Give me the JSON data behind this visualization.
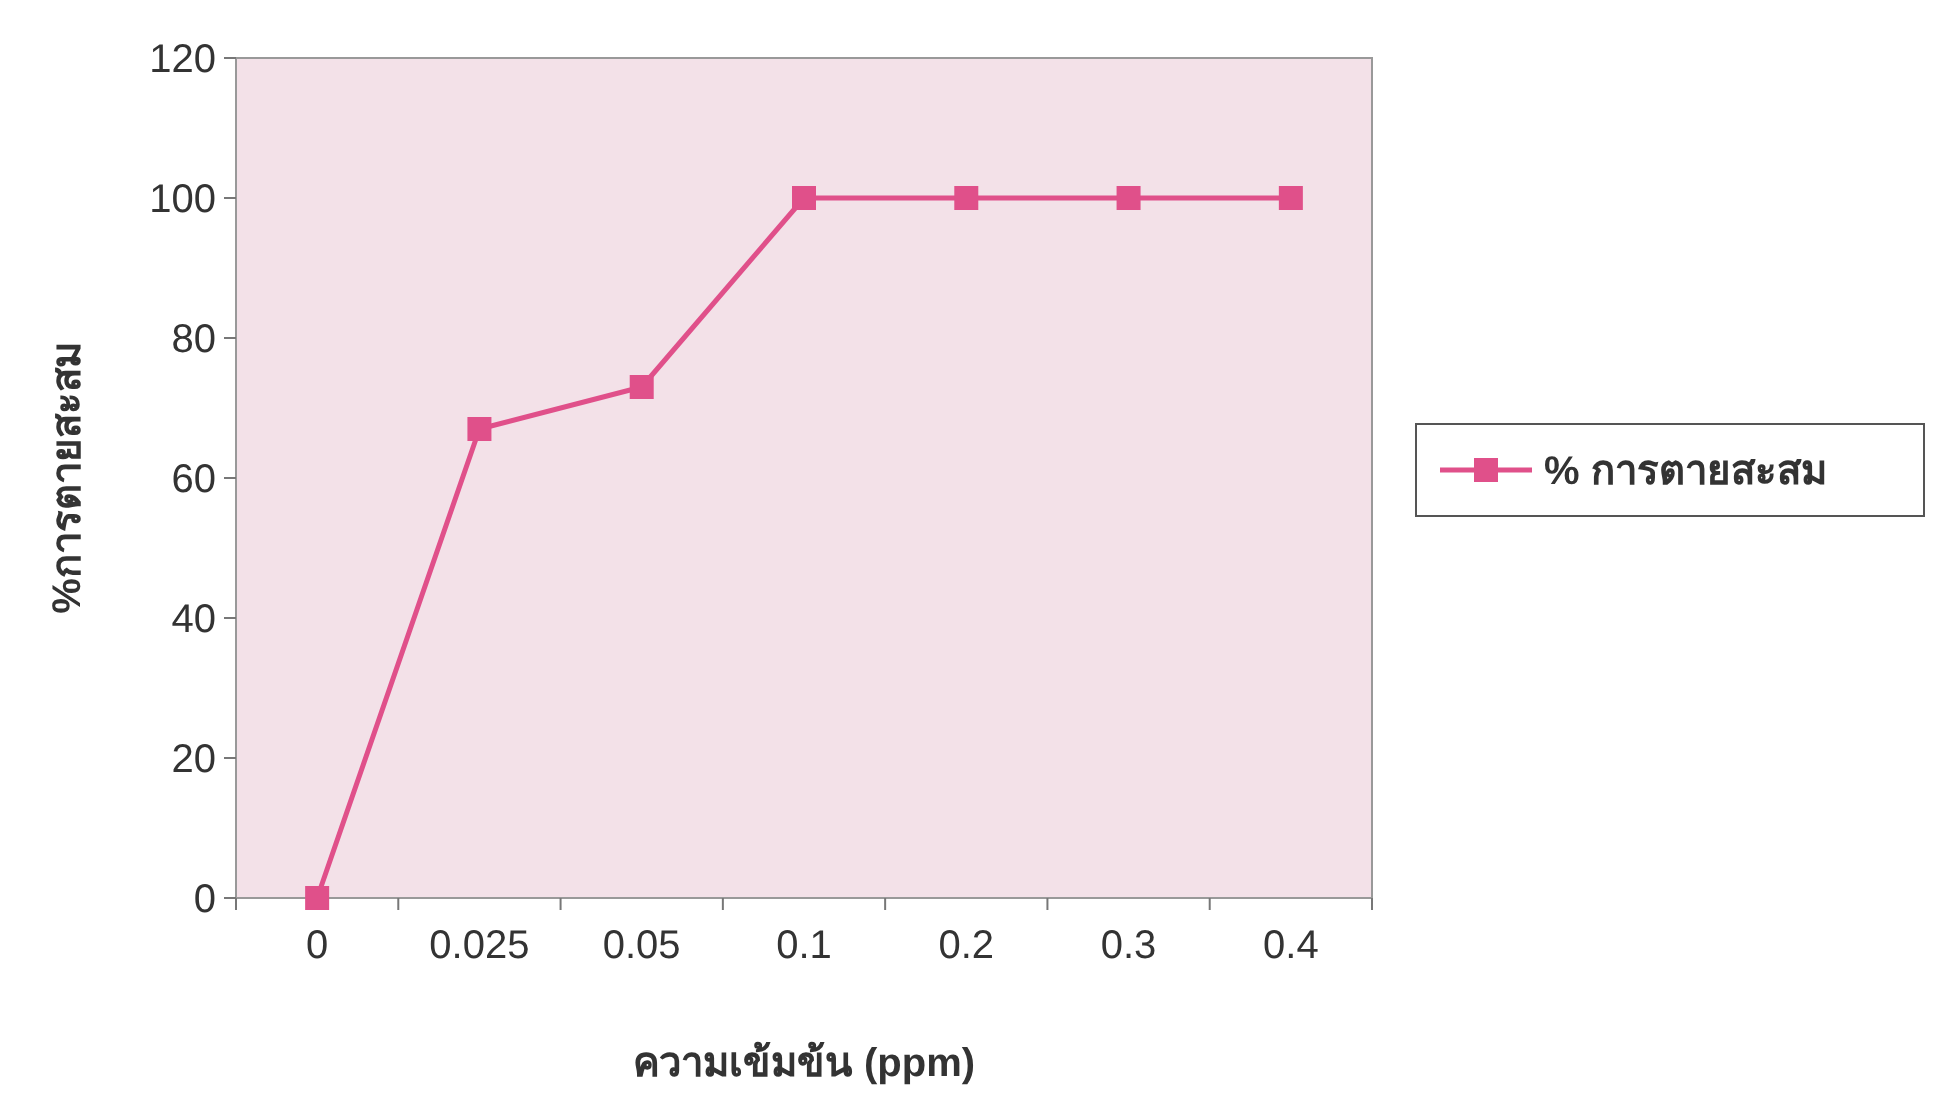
{
  "chart_data": {
    "type": "line",
    "xlabel": "ความเข้มข้น (ppm)",
    "ylabel": "%การตายสะสม",
    "categories": [
      "0",
      "0.025",
      "0.05",
      "0.1",
      "0.2",
      "0.3",
      "0.4"
    ],
    "series": [
      {
        "name": "% การตายสะสม",
        "color": "#e0508a",
        "values": [
          0,
          67,
          73,
          100,
          100,
          100,
          100
        ]
      }
    ],
    "ylim": [
      0,
      120
    ],
    "yticks": [
      0,
      20,
      40,
      60,
      80,
      100,
      120
    ],
    "legend": "right",
    "marker": "square",
    "line_style": "solid",
    "grid": false
  }
}
